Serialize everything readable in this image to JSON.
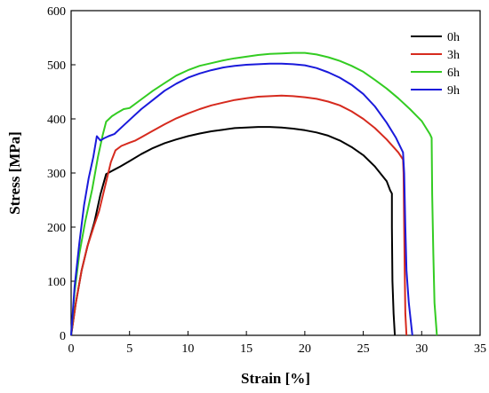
{
  "chart_data": {
    "type": "line",
    "xlabel": "Strain [%]",
    "ylabel": "Stress [MPa]",
    "xlim": [
      0,
      35
    ],
    "ylim": [
      0,
      600
    ],
    "xticks": [
      0,
      5,
      10,
      15,
      20,
      25,
      30,
      35
    ],
    "yticks": [
      0,
      100,
      200,
      300,
      400,
      500,
      600
    ],
    "grid": false,
    "legend_position": "top-right",
    "series": [
      {
        "name": "0h",
        "color": "#000000",
        "points": [
          [
            0,
            0
          ],
          [
            0.4,
            60
          ],
          [
            0.9,
            120
          ],
          [
            1.4,
            165
          ],
          [
            2.0,
            210
          ],
          [
            2.5,
            260
          ],
          [
            3.0,
            298
          ],
          [
            3.5,
            304
          ],
          [
            4.2,
            312
          ],
          [
            5,
            322
          ],
          [
            6,
            335
          ],
          [
            7,
            346
          ],
          [
            8,
            355
          ],
          [
            9,
            362
          ],
          [
            10,
            368
          ],
          [
            11,
            373
          ],
          [
            12,
            377
          ],
          [
            13,
            380
          ],
          [
            14,
            383
          ],
          [
            15,
            384
          ],
          [
            16,
            385
          ],
          [
            17,
            385
          ],
          [
            18,
            384
          ],
          [
            19,
            382
          ],
          [
            20,
            379
          ],
          [
            21,
            375
          ],
          [
            22,
            369
          ],
          [
            23,
            360
          ],
          [
            24,
            348
          ],
          [
            25,
            333
          ],
          [
            26,
            312
          ],
          [
            27,
            285
          ],
          [
            27.3,
            268
          ],
          [
            27.45,
            262
          ],
          [
            27.45,
            200
          ],
          [
            27.5,
            100
          ],
          [
            27.6,
            40
          ],
          [
            27.7,
            0
          ]
        ]
      },
      {
        "name": "3h",
        "color": "#d62a1e",
        "points": [
          [
            0,
            0
          ],
          [
            0.4,
            60
          ],
          [
            0.9,
            120
          ],
          [
            1.4,
            165
          ],
          [
            2.0,
            205
          ],
          [
            2.4,
            230
          ],
          [
            2.9,
            275
          ],
          [
            3.4,
            320
          ],
          [
            3.8,
            342
          ],
          [
            4.3,
            350
          ],
          [
            5,
            356
          ],
          [
            5.5,
            360
          ],
          [
            6,
            366
          ],
          [
            7,
            378
          ],
          [
            8,
            390
          ],
          [
            9,
            401
          ],
          [
            10,
            410
          ],
          [
            11,
            418
          ],
          [
            12,
            425
          ],
          [
            13,
            430
          ],
          [
            14,
            435
          ],
          [
            15,
            438
          ],
          [
            16,
            441
          ],
          [
            17,
            442
          ],
          [
            18,
            443
          ],
          [
            19,
            442
          ],
          [
            20,
            440
          ],
          [
            21,
            437
          ],
          [
            22,
            432
          ],
          [
            23,
            425
          ],
          [
            24,
            414
          ],
          [
            25,
            400
          ],
          [
            26,
            383
          ],
          [
            27,
            362
          ],
          [
            28,
            338
          ],
          [
            28.4,
            325
          ],
          [
            28.45,
            300
          ],
          [
            28.5,
            200
          ],
          [
            28.55,
            120
          ],
          [
            28.6,
            40
          ],
          [
            28.7,
            0
          ]
        ]
      },
      {
        "name": "6h",
        "color": "#33cc22",
        "points": [
          [
            0,
            0
          ],
          [
            0.3,
            80
          ],
          [
            0.7,
            150
          ],
          [
            1.2,
            210
          ],
          [
            1.8,
            270
          ],
          [
            2.3,
            330
          ],
          [
            2.7,
            370
          ],
          [
            3.0,
            395
          ],
          [
            3.5,
            405
          ],
          [
            4,
            412
          ],
          [
            4.5,
            418
          ],
          [
            5,
            420
          ],
          [
            6,
            436
          ],
          [
            7,
            452
          ],
          [
            8,
            466
          ],
          [
            9,
            480
          ],
          [
            10,
            490
          ],
          [
            11,
            498
          ],
          [
            12,
            503
          ],
          [
            13,
            508
          ],
          [
            14,
            512
          ],
          [
            15,
            515
          ],
          [
            16,
            518
          ],
          [
            17,
            520
          ],
          [
            18,
            521
          ],
          [
            19,
            522
          ],
          [
            20,
            522
          ],
          [
            21,
            519
          ],
          [
            22,
            514
          ],
          [
            23,
            507
          ],
          [
            24,
            498
          ],
          [
            25,
            487
          ],
          [
            26,
            472
          ],
          [
            27,
            456
          ],
          [
            28,
            438
          ],
          [
            29,
            418
          ],
          [
            30,
            396
          ],
          [
            30.7,
            372
          ],
          [
            30.85,
            365
          ],
          [
            30.9,
            260
          ],
          [
            31.0,
            150
          ],
          [
            31.1,
            60
          ],
          [
            31.3,
            0
          ]
        ]
      },
      {
        "name": "9h",
        "color": "#1a1adb",
        "points": [
          [
            0,
            0
          ],
          [
            0.3,
            90
          ],
          [
            0.7,
            170
          ],
          [
            1.1,
            240
          ],
          [
            1.5,
            290
          ],
          [
            1.9,
            330
          ],
          [
            2.2,
            368
          ],
          [
            2.5,
            360
          ],
          [
            2.8,
            364
          ],
          [
            3.2,
            368
          ],
          [
            3.7,
            372
          ],
          [
            4.5,
            388
          ],
          [
            5,
            398
          ],
          [
            6,
            418
          ],
          [
            7,
            435
          ],
          [
            8,
            452
          ],
          [
            9,
            465
          ],
          [
            10,
            476
          ],
          [
            11,
            484
          ],
          [
            12,
            490
          ],
          [
            13,
            495
          ],
          [
            14,
            498
          ],
          [
            15,
            500
          ],
          [
            16,
            501
          ],
          [
            17,
            502
          ],
          [
            18,
            502
          ],
          [
            19,
            501
          ],
          [
            20,
            499
          ],
          [
            21,
            494
          ],
          [
            22,
            486
          ],
          [
            23,
            476
          ],
          [
            24,
            463
          ],
          [
            25,
            446
          ],
          [
            26,
            423
          ],
          [
            27,
            393
          ],
          [
            27.8,
            365
          ],
          [
            28.4,
            338
          ],
          [
            28.5,
            300
          ],
          [
            28.6,
            200
          ],
          [
            28.7,
            120
          ],
          [
            28.9,
            60
          ],
          [
            29.2,
            0
          ]
        ]
      }
    ]
  }
}
